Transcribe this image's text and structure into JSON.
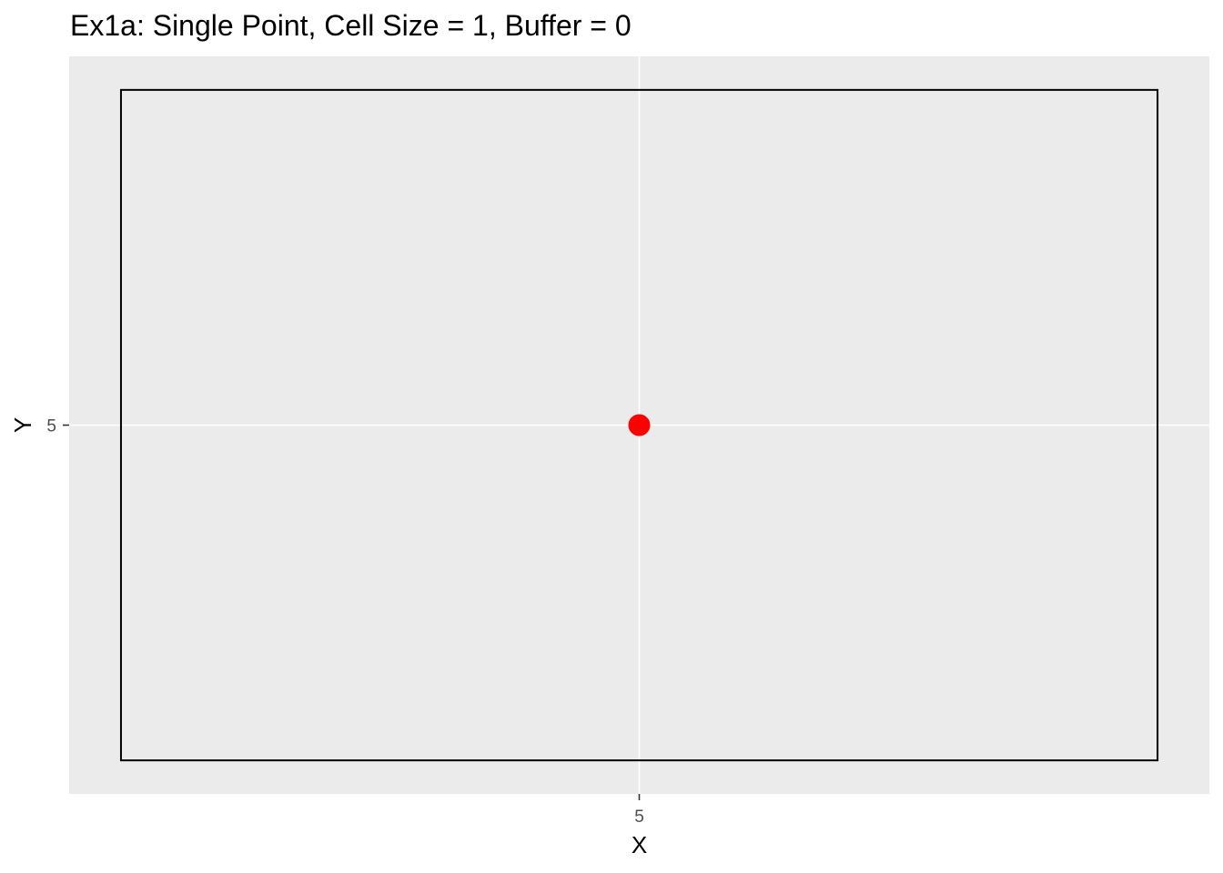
{
  "chart_data": {
    "type": "scatter",
    "title": "Ex1a: Single Point, Cell Size = 1, Buffer = 0",
    "xlabel": "X",
    "ylabel": "Y",
    "x_ticks": [
      "5"
    ],
    "y_ticks": [
      "5"
    ],
    "xlim": [
      4.45,
      5.55
    ],
    "ylim": [
      4.45,
      5.55
    ],
    "grid": true,
    "panel_background": "#ebebeb",
    "gridline_color": "#ffffff",
    "points": [
      {
        "x": 5,
        "y": 5,
        "color": "#ff0000"
      }
    ],
    "rectangle": {
      "xmin": 4.5,
      "xmax": 5.5,
      "ymin": 4.5,
      "ymax": 5.5,
      "stroke": "#000000",
      "fill": "none"
    }
  }
}
